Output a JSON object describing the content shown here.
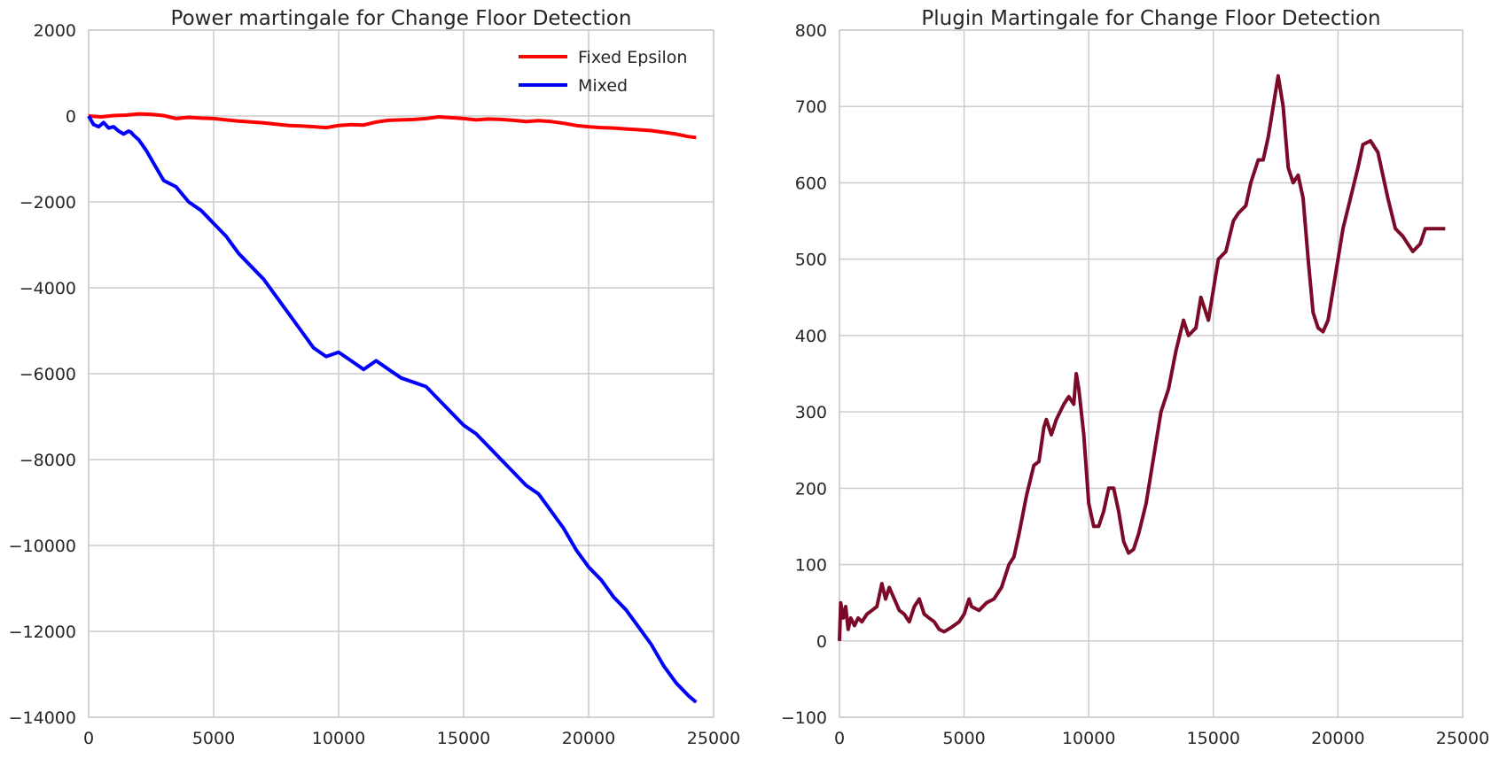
{
  "chart_data": [
    {
      "type": "line",
      "title": "Power martingale for Change Floor Detection",
      "xlim": [
        0,
        25000
      ],
      "ylim": [
        -14000,
        2000
      ],
      "xticks": [
        0,
        5000,
        10000,
        15000,
        20000,
        25000
      ],
      "xtick_labels": [
        "0",
        "5000",
        "10000",
        "15000",
        "20000",
        "25000"
      ],
      "yticks": [
        2000,
        0,
        -2000,
        -4000,
        -6000,
        -8000,
        -10000,
        -12000,
        -14000
      ],
      "ytick_labels": [
        "2000",
        "0",
        "−2000",
        "−4000",
        "−6000",
        "−8000",
        "−10000",
        "−12000",
        "−14000"
      ],
      "grid": true,
      "legend": "top-right",
      "series": [
        {
          "name": "Fixed Epsilon",
          "color": "#ff0000",
          "x": [
            0,
            500,
            1000,
            1500,
            2000,
            2500,
            3000,
            3500,
            4000,
            4500,
            5000,
            5500,
            6000,
            6500,
            7000,
            7500,
            8000,
            8500,
            9000,
            9500,
            10000,
            10500,
            11000,
            11500,
            12000,
            12500,
            13000,
            13500,
            14000,
            14500,
            15000,
            15500,
            16000,
            16500,
            17000,
            17500,
            18000,
            18500,
            19000,
            19500,
            20000,
            20500,
            21000,
            21500,
            22000,
            22500,
            23000,
            23500,
            24000,
            24300
          ],
          "y": [
            0,
            -20,
            10,
            20,
            50,
            40,
            10,
            -60,
            -30,
            -50,
            -60,
            -90,
            -120,
            -140,
            -160,
            -190,
            -220,
            -230,
            -250,
            -270,
            -220,
            -200,
            -210,
            -140,
            -100,
            -90,
            -80,
            -60,
            -20,
            -40,
            -60,
            -90,
            -70,
            -80,
            -100,
            -130,
            -110,
            -130,
            -170,
            -220,
            -250,
            -270,
            -280,
            -300,
            -320,
            -340,
            -380,
            -420,
            -480,
            -500
          ]
        },
        {
          "name": "Mixed",
          "color": "#0000ff",
          "x": [
            0,
            200,
            400,
            600,
            800,
            1000,
            1200,
            1400,
            1600,
            1700,
            1800,
            2000,
            2300,
            2600,
            3000,
            3500,
            4000,
            4500,
            5000,
            5500,
            6000,
            6500,
            7000,
            7500,
            8000,
            8500,
            9000,
            9500,
            10000,
            10500,
            11000,
            11500,
            12000,
            12500,
            13000,
            13500,
            14000,
            14500,
            15000,
            15500,
            16000,
            16500,
            17000,
            17500,
            18000,
            18500,
            19000,
            19500,
            20000,
            20500,
            21000,
            21500,
            22000,
            22500,
            23000,
            23500,
            24000,
            24300
          ],
          "y": [
            0,
            -200,
            -250,
            -150,
            -280,
            -250,
            -350,
            -420,
            -350,
            -380,
            -450,
            -550,
            -800,
            -1100,
            -1500,
            -1650,
            -2000,
            -2200,
            -2500,
            -2800,
            -3200,
            -3500,
            -3800,
            -4200,
            -4600,
            -5000,
            -5400,
            -5600,
            -5500,
            -5700,
            -5900,
            -5700,
            -5900,
            -6100,
            -6200,
            -6300,
            -6600,
            -6900,
            -7200,
            -7400,
            -7700,
            -8000,
            -8300,
            -8600,
            -8800,
            -9200,
            -9600,
            -10100,
            -10500,
            -10800,
            -11200,
            -11500,
            -11900,
            -12300,
            -12800,
            -13200,
            -13500,
            -13650
          ]
        }
      ]
    },
    {
      "type": "line",
      "title": "Plugin Martingale for Change Floor Detection",
      "xlim": [
        0,
        25000
      ],
      "ylim": [
        -100,
        800
      ],
      "xticks": [
        0,
        5000,
        10000,
        15000,
        20000,
        25000
      ],
      "xtick_labels": [
        "0",
        "5000",
        "10000",
        "15000",
        "20000",
        "25000"
      ],
      "yticks": [
        800,
        700,
        600,
        500,
        400,
        300,
        200,
        100,
        0,
        -100
      ],
      "ytick_labels": [
        "800",
        "700",
        "600",
        "500",
        "400",
        "300",
        "200",
        "100",
        "0",
        "−100"
      ],
      "grid": true,
      "series": [
        {
          "color": "#7b0a28",
          "x": [
            0,
            50,
            150,
            250,
            350,
            450,
            600,
            750,
            900,
            1100,
            1300,
            1500,
            1700,
            1850,
            2000,
            2200,
            2400,
            2600,
            2800,
            3000,
            3200,
            3400,
            3600,
            3800,
            4000,
            4200,
            4500,
            4800,
            5000,
            5200,
            5300,
            5600,
            5900,
            6200,
            6500,
            6800,
            7000,
            7200,
            7500,
            7800,
            8000,
            8200,
            8300,
            8500,
            8700,
            9000,
            9200,
            9400,
            9500,
            9600,
            9800,
            10000,
            10200,
            10400,
            10600,
            10800,
            11000,
            11200,
            11400,
            11600,
            11800,
            12000,
            12300,
            12600,
            12900,
            13200,
            13500,
            13800,
            14000,
            14300,
            14500,
            14800,
            15000,
            15200,
            15500,
            15800,
            16000,
            16300,
            16500,
            16800,
            17000,
            17200,
            17400,
            17600,
            17800,
            18000,
            18200,
            18400,
            18600,
            18800,
            19000,
            19200,
            19400,
            19600,
            19800,
            20000,
            20200,
            20500,
            20800,
            21000,
            21300,
            21600,
            21800,
            22000,
            22300,
            22600,
            22800,
            23000,
            23300,
            23500,
            23800,
            24000,
            24300
          ],
          "y": [
            0,
            50,
            30,
            45,
            15,
            30,
            20,
            30,
            25,
            35,
            40,
            45,
            75,
            55,
            70,
            55,
            40,
            35,
            25,
            45,
            55,
            35,
            30,
            25,
            15,
            12,
            18,
            25,
            35,
            55,
            45,
            40,
            50,
            55,
            70,
            100,
            110,
            140,
            190,
            230,
            235,
            280,
            290,
            270,
            290,
            310,
            320,
            310,
            350,
            330,
            270,
            180,
            150,
            150,
            170,
            200,
            200,
            170,
            130,
            115,
            120,
            140,
            180,
            240,
            300,
            330,
            380,
            420,
            400,
            410,
            450,
            420,
            460,
            500,
            510,
            550,
            560,
            570,
            600,
            630,
            630,
            660,
            700,
            740,
            700,
            620,
            600,
            610,
            580,
            500,
            430,
            410,
            405,
            420,
            460,
            500,
            540,
            580,
            620,
            650,
            655,
            640,
            610,
            580,
            540,
            530,
            520,
            510,
            520,
            540,
            540,
            540,
            540
          ]
        }
      ]
    }
  ]
}
